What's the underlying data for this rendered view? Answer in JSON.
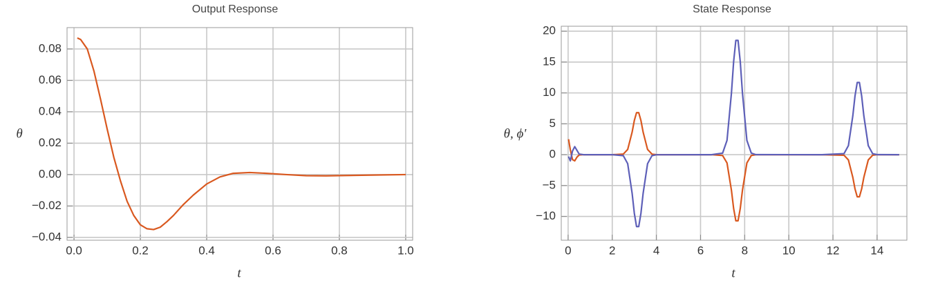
{
  "chart_data": [
    {
      "type": "line",
      "title": "Output Response",
      "xlabel": "t",
      "ylabel": "θ",
      "x": [
        0.01,
        0.02,
        0.04,
        0.06,
        0.08,
        0.1,
        0.12,
        0.14,
        0.16,
        0.18,
        0.2,
        0.22,
        0.24,
        0.26,
        0.28,
        0.3,
        0.33,
        0.36,
        0.4,
        0.44,
        0.48,
        0.53,
        0.58,
        0.64,
        0.7,
        0.76,
        0.82,
        0.9,
        1.0
      ],
      "series": [
        {
          "name": "θ",
          "color": "#d9581f",
          "values": [
            0.087,
            0.086,
            0.08,
            0.066,
            0.048,
            0.029,
            0.011,
            -0.004,
            -0.017,
            -0.026,
            -0.032,
            -0.0345,
            -0.035,
            -0.0335,
            -0.03,
            -0.026,
            -0.019,
            -0.013,
            -0.006,
            -0.0015,
            0.0008,
            0.0013,
            0.0008,
            0,
            -0.0007,
            -0.0008,
            -0.0006,
            -0.0003,
            0
          ]
        }
      ],
      "xlim": [
        -0.021,
        1.021
      ],
      "ylim": [
        -0.0418,
        0.0936
      ],
      "xticks": [
        {
          "value": 0,
          "label": "0.0"
        },
        0.2,
        0.4,
        0.6,
        0.8,
        {
          "value": 1,
          "label": "1.0"
        }
      ],
      "yticks": [
        {
          "value": -0.04,
          "label": "−0.04"
        },
        {
          "value": -0.02,
          "label": "−0.02"
        },
        {
          "value": 0,
          "label": "0.00"
        },
        0.02,
        0.04,
        0.06,
        0.08
      ],
      "grid": true
    },
    {
      "type": "line",
      "title": "State Response",
      "xlabel": "t",
      "ylabel": "θ, ϕ'",
      "x": [
        0.02,
        0.1,
        0.2,
        0.3,
        0.4,
        0.5,
        0.7,
        2.0,
        2.5,
        2.7,
        2.9,
        3.0,
        3.1,
        3.2,
        3.3,
        3.4,
        3.6,
        3.8,
        4.0,
        6.5,
        7.0,
        7.2,
        7.4,
        7.5,
        7.6,
        7.7,
        7.8,
        7.9,
        8.1,
        8.3,
        8.5,
        11.5,
        12.5,
        12.7,
        12.9,
        13.0,
        13.1,
        13.2,
        13.3,
        13.4,
        13.6,
        13.8,
        14.0,
        15
      ],
      "series": [
        {
          "name": "θ",
          "color": "#d9581f",
          "values": [
            2.5,
            0.8,
            -0.8,
            -1.0,
            -0.4,
            -0.05,
            0,
            0,
            0.09,
            0.85,
            3.64,
            5.53,
            6.8,
            6.8,
            5.53,
            3.64,
            0.85,
            0.09,
            0,
            0,
            -0.14,
            -1.34,
            -5.76,
            -8.72,
            -10.71,
            -10.71,
            -8.72,
            -5.76,
            -1.34,
            -0.14,
            -0.01,
            0,
            -0.09,
            -0.85,
            -3.67,
            -5.55,
            -6.82,
            -6.82,
            -5.55,
            -3.67,
            -0.85,
            -0.09,
            0,
            0
          ]
        },
        {
          "name": "ϕ'",
          "color": "#5d5fb8",
          "values": [
            -0.3,
            -1.0,
            0.6,
            1.3,
            0.7,
            0.1,
            0,
            0,
            -0.16,
            -1.46,
            -6.24,
            -9.48,
            -11.64,
            -11.64,
            -9.48,
            -6.24,
            -1.46,
            -0.16,
            -0.01,
            0,
            0.25,
            2.32,
            9.96,
            15.07,
            18.51,
            18.51,
            15.07,
            9.96,
            2.32,
            0.25,
            0.01,
            0,
            0.16,
            1.46,
            6.29,
            9.52,
            11.69,
            11.69,
            9.52,
            6.29,
            1.46,
            0.16,
            0.01,
            0
          ]
        }
      ],
      "xlim": [
        -0.31,
        15.35
      ],
      "ylim": [
        -13.85,
        20.8
      ],
      "xticks": [
        0,
        2,
        4,
        6,
        8,
        10,
        12,
        14
      ],
      "yticks": [
        {
          "value": -10,
          "label": "−10"
        },
        {
          "value": -5,
          "label": "−5"
        },
        0,
        5,
        10,
        15,
        20
      ],
      "grid": true
    }
  ]
}
